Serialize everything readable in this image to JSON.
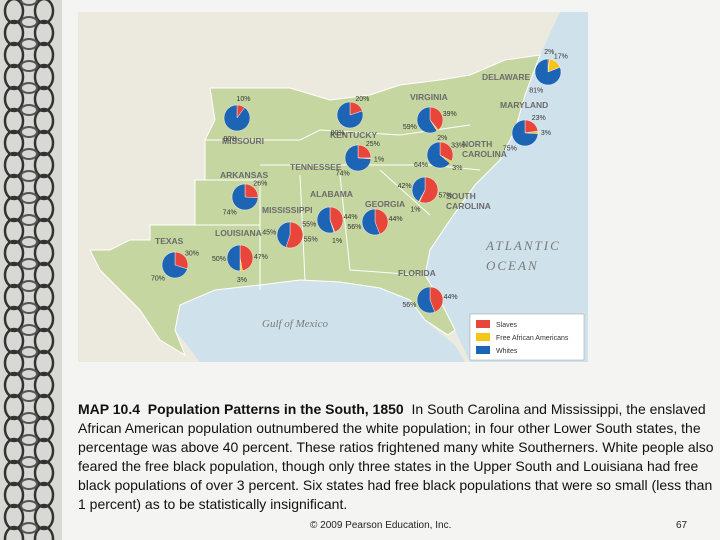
{
  "map": {
    "places": [
      [
        "DELAWARE"
      ],
      [
        "MARYLAND"
      ],
      [
        "VIRGINIA"
      ],
      [
        "KENTUCKY"
      ],
      [
        "MISSOURI"
      ],
      [
        "NORTH",
        "CAROLINA"
      ],
      [
        "TENNESSEE"
      ],
      [
        "ARKANSAS"
      ],
      [
        "ALABAMA"
      ],
      [
        "MISSISSIPPI"
      ],
      [
        "GEORGIA"
      ],
      [
        "SOUTH",
        "CAROLINA"
      ],
      [
        "LOUISIANA"
      ],
      [
        "TEXAS"
      ],
      [
        "FLORIDA"
      ]
    ],
    "waters": [
      [
        "ATLANTIC",
        "OCEAN"
      ],
      [
        "Gulf of Mexico"
      ]
    ],
    "legend": [
      {
        "name": "Slaves",
        "color": "#e8463a"
      },
      {
        "name": "Free African Americans",
        "color": "#f5c518"
      },
      {
        "name": "Whites",
        "color": "#1e64b4"
      }
    ],
    "pies": [
      {
        "values": [
          2,
          17,
          81
        ],
        "value_labels": [
          "2%",
          "17%",
          "81%"
        ]
      },
      {
        "values": [
          23,
          3,
          75
        ],
        "value_labels": [
          "23%",
          "3%",
          "75%"
        ]
      },
      {
        "values": [
          39,
          2,
          59
        ],
        "value_labels": [
          "39%",
          "2%",
          "59%"
        ]
      },
      {
        "values": [
          10,
          null,
          90
        ],
        "value_labels": [
          "10%",
          null,
          "90%"
        ]
      },
      {
        "values": [
          20,
          null,
          80
        ],
        "value_labels": [
          "20%",
          null,
          "80%"
        ]
      },
      {
        "values": [
          25,
          1,
          74
        ],
        "value_labels": [
          "25%",
          "1%",
          "74%"
        ]
      },
      {
        "values": [
          33,
          3,
          64
        ],
        "value_labels": [
          "33%",
          "3%",
          "64%"
        ]
      },
      {
        "values": [
          26,
          null,
          74
        ],
        "value_labels": [
          "26%",
          null,
          "74%"
        ]
      },
      {
        "values": [
          55,
          null,
          45
        ],
        "value_labels": [
          "55%",
          null,
          "45%"
        ]
      },
      {
        "values": [
          44,
          1,
          55
        ],
        "value_labels": [
          "44%",
          "1%",
          "55%"
        ]
      },
      {
        "values": [
          47,
          3,
          50
        ],
        "value_labels": [
          "47%",
          "3%",
          "50%"
        ]
      },
      {
        "values": [
          44,
          null,
          56
        ],
        "value_labels": [
          "44%",
          null,
          "56%"
        ]
      },
      {
        "values": [
          57,
          1,
          42
        ],
        "value_labels": [
          "57%",
          "1%",
          "42%"
        ]
      },
      {
        "values": [
          30,
          null,
          70
        ],
        "value_labels": [
          "30%",
          null,
          "70%"
        ]
      },
      {
        "values": [
          44,
          null,
          56
        ],
        "value_labels": [
          "44%",
          null,
          "56%"
        ]
      }
    ]
  },
  "caption": {
    "label": "MAP 10.4",
    "title": "Population Patterns in the South, 1850",
    "body": "In South Carolina and Mississippi, the enslaved African American population outnumbered the white population; in four other Lower South states, the percentage was above 40 percent. These ratios frightened many white Southerners. White people also feared the free black population, though only three states in the Upper South and Louisiana had free black populations of over 3 percent. Six states had free black populations that were so small (less than 1 percent) as to be statistically insignificant."
  },
  "footer": {
    "copyright": "© 2009 Pearson Education, Inc.",
    "page": "67"
  }
}
